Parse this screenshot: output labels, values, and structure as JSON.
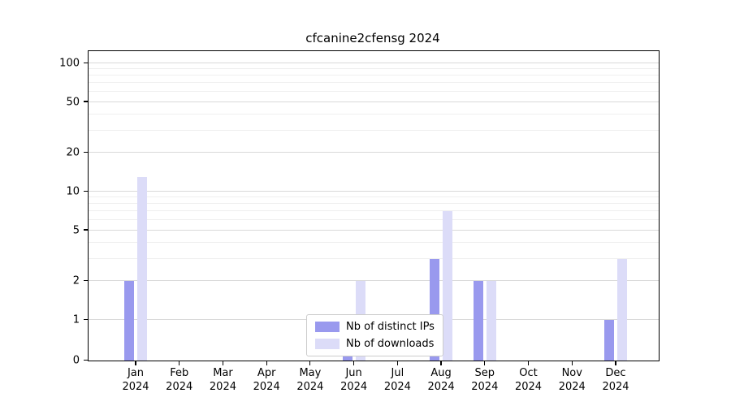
{
  "chart_data": {
    "type": "bar",
    "title": "cfcanine2cfensg 2024",
    "x_months": [
      "Jan",
      "Feb",
      "Mar",
      "Apr",
      "May",
      "Jun",
      "Jul",
      "Aug",
      "Sep",
      "Oct",
      "Nov",
      "Dec"
    ],
    "x_year": "2024",
    "series": [
      {
        "name": "Nb of distinct IPs",
        "color": "#9999ee",
        "values": [
          2,
          0,
          0,
          0,
          0,
          1,
          0,
          3,
          2,
          0,
          0,
          1
        ]
      },
      {
        "name": "Nb of downloads",
        "color": "#dcdcf8",
        "values": [
          13,
          0,
          0,
          0,
          0,
          2,
          0,
          7,
          2,
          0,
          0,
          3
        ]
      }
    ],
    "y_axis": {
      "scale": "symlog",
      "major_ticks": [
        0,
        1,
        2,
        5,
        10,
        20,
        50,
        100
      ],
      "minor_ticks": [
        3,
        4,
        6,
        7,
        8,
        9,
        30,
        40,
        60,
        70,
        80,
        90
      ],
      "ylim": [
        0,
        115
      ]
    },
    "grid": "horizontal",
    "legend": {
      "position": "lower center",
      "entries": [
        "Nb of distinct IPs",
        "Nb of downloads"
      ]
    }
  }
}
